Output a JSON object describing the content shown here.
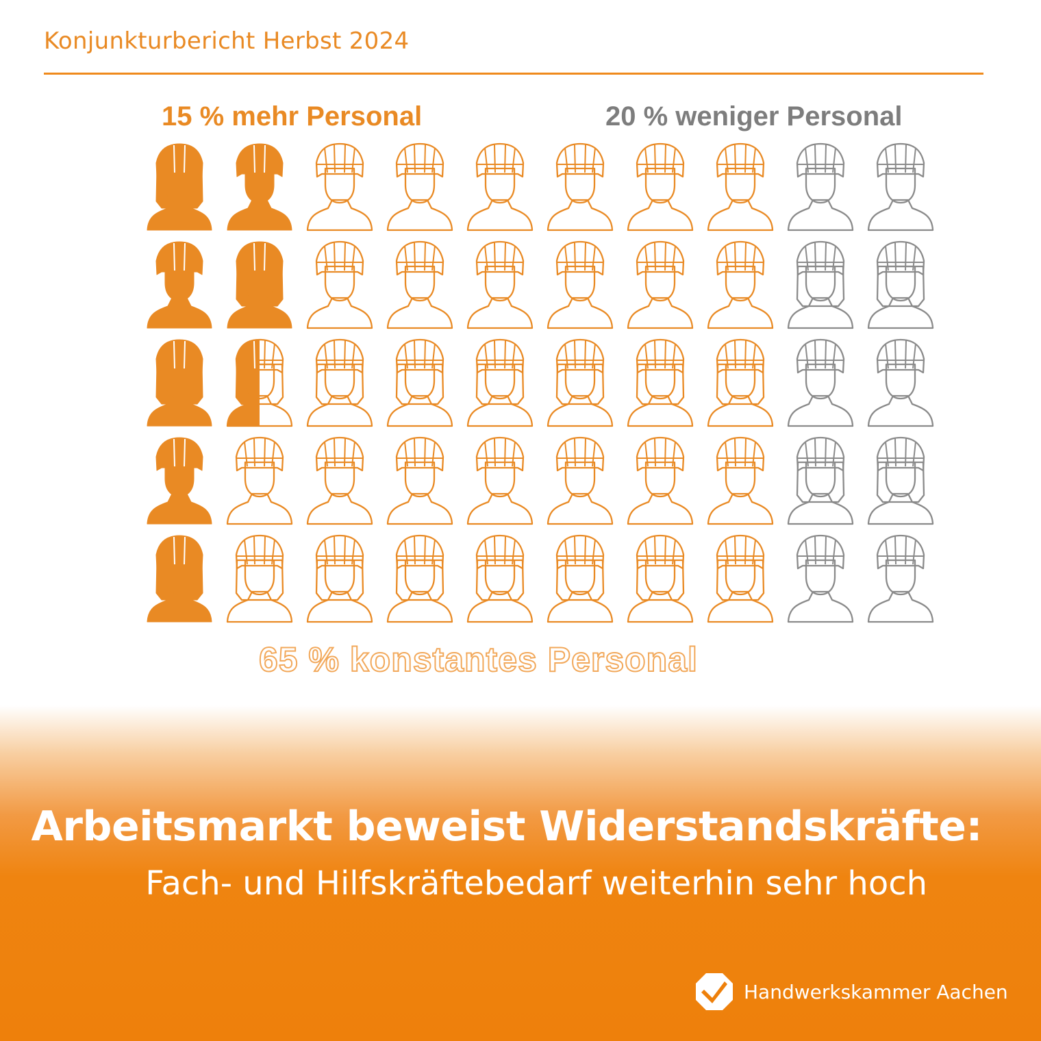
{
  "header": {
    "title": "Konjunkturbericht Herbst 2024"
  },
  "chart_data": {
    "type": "pictogram",
    "grid": {
      "rows": 5,
      "columns": 10
    },
    "series": [
      {
        "name": "15 % mehr Personal",
        "value": 15,
        "color": "#e98a24",
        "style": "filled"
      },
      {
        "name": "65 % konstantes Personal",
        "value": 65,
        "color": "#e98a24",
        "style": "outline"
      },
      {
        "name": "20 % weniger Personal",
        "value": 20,
        "color": "#8a8a8a",
        "style": "outline"
      }
    ]
  },
  "labels": {
    "more": "15 % mehr Personal",
    "less": "20 % weniger Personal",
    "constant": "65 % konstantes Personal"
  },
  "banner": {
    "headline": "Arbeitsmarkt beweist Widerstandskräfte:",
    "subline": "Fach- und Hilfskräftebedarf weiterhin sehr hoch"
  },
  "logo": {
    "text": "Handwerkskammer Aachen",
    "icon": "hwk-logo-icon"
  }
}
